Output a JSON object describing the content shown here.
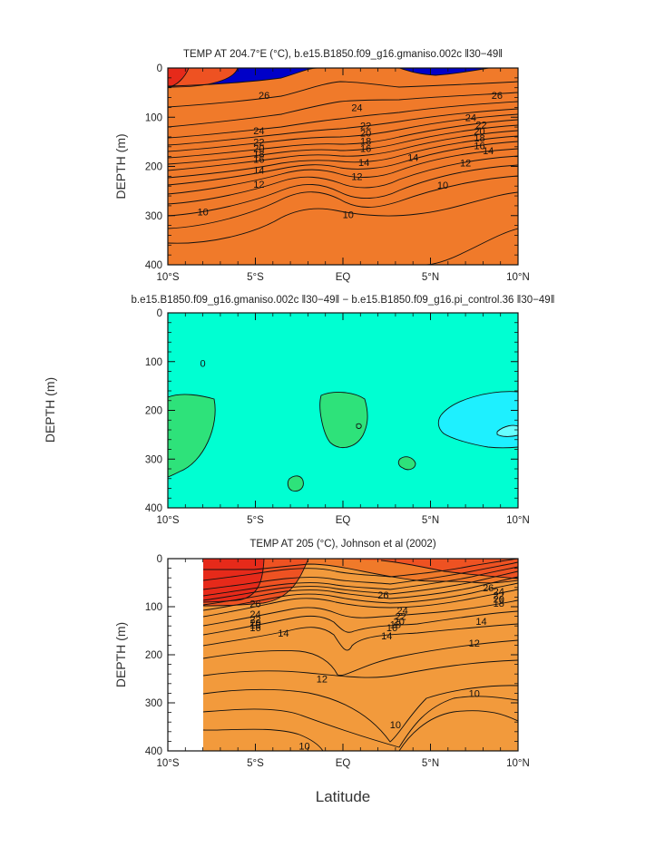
{
  "figure": {
    "xlabel": "Latitude"
  },
  "chart_data": [
    {
      "type": "heatmap",
      "title": "TEMP AT 204.7°E (°C), b.e15.B1850.f09_g16.gmaniso.002c ‖30−49‖",
      "ylabel": "DEPTH (m)",
      "xlabel": "",
      "x_ticks": [
        "10°S",
        "5°S",
        "EQ",
        "5°N",
        "10°N"
      ],
      "y_ticks": [
        "0",
        "100",
        "200",
        "300",
        "400"
      ],
      "xlim": [
        -10,
        10
      ],
      "ylim": [
        0,
        400
      ],
      "colors": [
        "#0000c8",
        "#0a3ad8",
        "#1a5ae6",
        "#2a78ee",
        "#3d92f2",
        "#52a8f4",
        "#66baf4",
        "#7acaf4",
        "#8ed8f0",
        "#2ecc44",
        "#6ad83a",
        "#a8e03a",
        "#dce63c",
        "#f4e23a",
        "#f4c830",
        "#f2aa36",
        "#f29a3c",
        "#f07a2a",
        "#ee5222",
        "#e62a1a"
      ],
      "contour_labels": [
        {
          "text": "26",
          "x": -4.5,
          "y": 55
        },
        {
          "text": "24",
          "x": 0.8,
          "y": 80
        },
        {
          "text": "26",
          "x": 8.8,
          "y": 55
        },
        {
          "text": "24",
          "x": -4.8,
          "y": 127
        },
        {
          "text": "22",
          "x": -4.8,
          "y": 150
        },
        {
          "text": "20",
          "x": -4.8,
          "y": 163
        },
        {
          "text": "18",
          "x": -4.8,
          "y": 174
        },
        {
          "text": "16",
          "x": -4.8,
          "y": 185
        },
        {
          "text": "14",
          "x": -4.8,
          "y": 207
        },
        {
          "text": "12",
          "x": -4.8,
          "y": 236
        },
        {
          "text": "10",
          "x": -8,
          "y": 292
        },
        {
          "text": "22",
          "x": 1.3,
          "y": 117
        },
        {
          "text": "20",
          "x": 1.3,
          "y": 132
        },
        {
          "text": "18",
          "x": 1.3,
          "y": 148
        },
        {
          "text": "16",
          "x": 1.3,
          "y": 163
        },
        {
          "text": "14",
          "x": 1.2,
          "y": 192
        },
        {
          "text": "12",
          "x": 0.8,
          "y": 220
        },
        {
          "text": "10",
          "x": 0.3,
          "y": 298
        },
        {
          "text": "14",
          "x": 4,
          "y": 182
        },
        {
          "text": "12",
          "x": 7,
          "y": 193
        },
        {
          "text": "10",
          "x": 5.7,
          "y": 238
        },
        {
          "text": "24",
          "x": 7.3,
          "y": 100
        },
        {
          "text": "22",
          "x": 7.9,
          "y": 115
        },
        {
          "text": "20",
          "x": 7.8,
          "y": 128
        },
        {
          "text": "18",
          "x": 7.8,
          "y": 142
        },
        {
          "text": "16",
          "x": 7.8,
          "y": 158
        },
        {
          "text": "14",
          "x": 8.3,
          "y": 168
        }
      ]
    },
    {
      "type": "heatmap",
      "title": "b.e15.B1850.f09_g16.gmaniso.002c ‖30−49‖ − b.e15.B1850.f09_g16.pi_control.36 ‖30−49‖",
      "ylabel": "DEPTH (m)",
      "xlabel": "",
      "x_ticks": [
        "10°S",
        "5°S",
        "EQ",
        "5°N",
        "10°N"
      ],
      "y_ticks": [
        "0",
        "100",
        "200",
        "300",
        "400"
      ],
      "xlim": [
        -10,
        10
      ],
      "ylim": [
        0,
        400
      ],
      "colors": [
        "#00ffd2",
        "#2ee27a",
        "#1ef0ff",
        "#66ffff"
      ],
      "contour_labels": [
        {
          "text": "0",
          "x": -8,
          "y": 103
        }
      ]
    },
    {
      "type": "heatmap",
      "title": "TEMP AT 205 (°C), Johnson et al (2002)",
      "ylabel": "DEPTH (m)",
      "xlabel": "",
      "x_ticks": [
        "10°S",
        "5°S",
        "EQ",
        "5°N",
        "10°N"
      ],
      "y_ticks": [
        "0",
        "100",
        "200",
        "300",
        "400"
      ],
      "xlim": [
        -10,
        10
      ],
      "ylim": [
        0,
        400
      ],
      "data_xrange": [
        -8,
        10
      ],
      "colors": [
        "#0000c8",
        "#0a3ad8",
        "#1a5ae6",
        "#2a78ee",
        "#3d92f2",
        "#52a8f4",
        "#66baf4",
        "#7acaf4",
        "#8ed8f0",
        "#2ecc44",
        "#6ad83a",
        "#a8e03a",
        "#dce63c",
        "#f4e23a",
        "#f4c830",
        "#f2aa36",
        "#f29a3c",
        "#f07a2a",
        "#ee5222",
        "#e62a1a"
      ],
      "contour_labels": [
        {
          "text": "26",
          "x": -5,
          "y": 93
        },
        {
          "text": "24",
          "x": -5,
          "y": 115
        },
        {
          "text": "22",
          "x": -5,
          "y": 126
        },
        {
          "text": "20",
          "x": -5,
          "y": 133
        },
        {
          "text": "18",
          "x": -5,
          "y": 138
        },
        {
          "text": "16",
          "x": -5,
          "y": 143
        },
        {
          "text": "14",
          "x": -3.4,
          "y": 155
        },
        {
          "text": "12",
          "x": -1.2,
          "y": 250
        },
        {
          "text": "10",
          "x": -2.2,
          "y": 390
        },
        {
          "text": "26",
          "x": 2.3,
          "y": 75
        },
        {
          "text": "24",
          "x": 3.4,
          "y": 108
        },
        {
          "text": "22",
          "x": 3.3,
          "y": 120
        },
        {
          "text": "20",
          "x": 3.2,
          "y": 130
        },
        {
          "text": "18",
          "x": 3,
          "y": 137
        },
        {
          "text": "16",
          "x": 2.8,
          "y": 143
        },
        {
          "text": "14",
          "x": 2.5,
          "y": 160
        },
        {
          "text": "12",
          "x": 7.5,
          "y": 175
        },
        {
          "text": "10",
          "x": 3,
          "y": 345
        },
        {
          "text": "10",
          "x": 7.5,
          "y": 280
        },
        {
          "text": "26",
          "x": 8.3,
          "y": 60
        },
        {
          "text": "24",
          "x": 8.9,
          "y": 68
        },
        {
          "text": "22",
          "x": 8.9,
          "y": 76
        },
        {
          "text": "20",
          "x": 8.9,
          "y": 84
        },
        {
          "text": "18",
          "x": 8.9,
          "y": 92
        },
        {
          "text": "14",
          "x": 7.9,
          "y": 130
        }
      ]
    }
  ]
}
